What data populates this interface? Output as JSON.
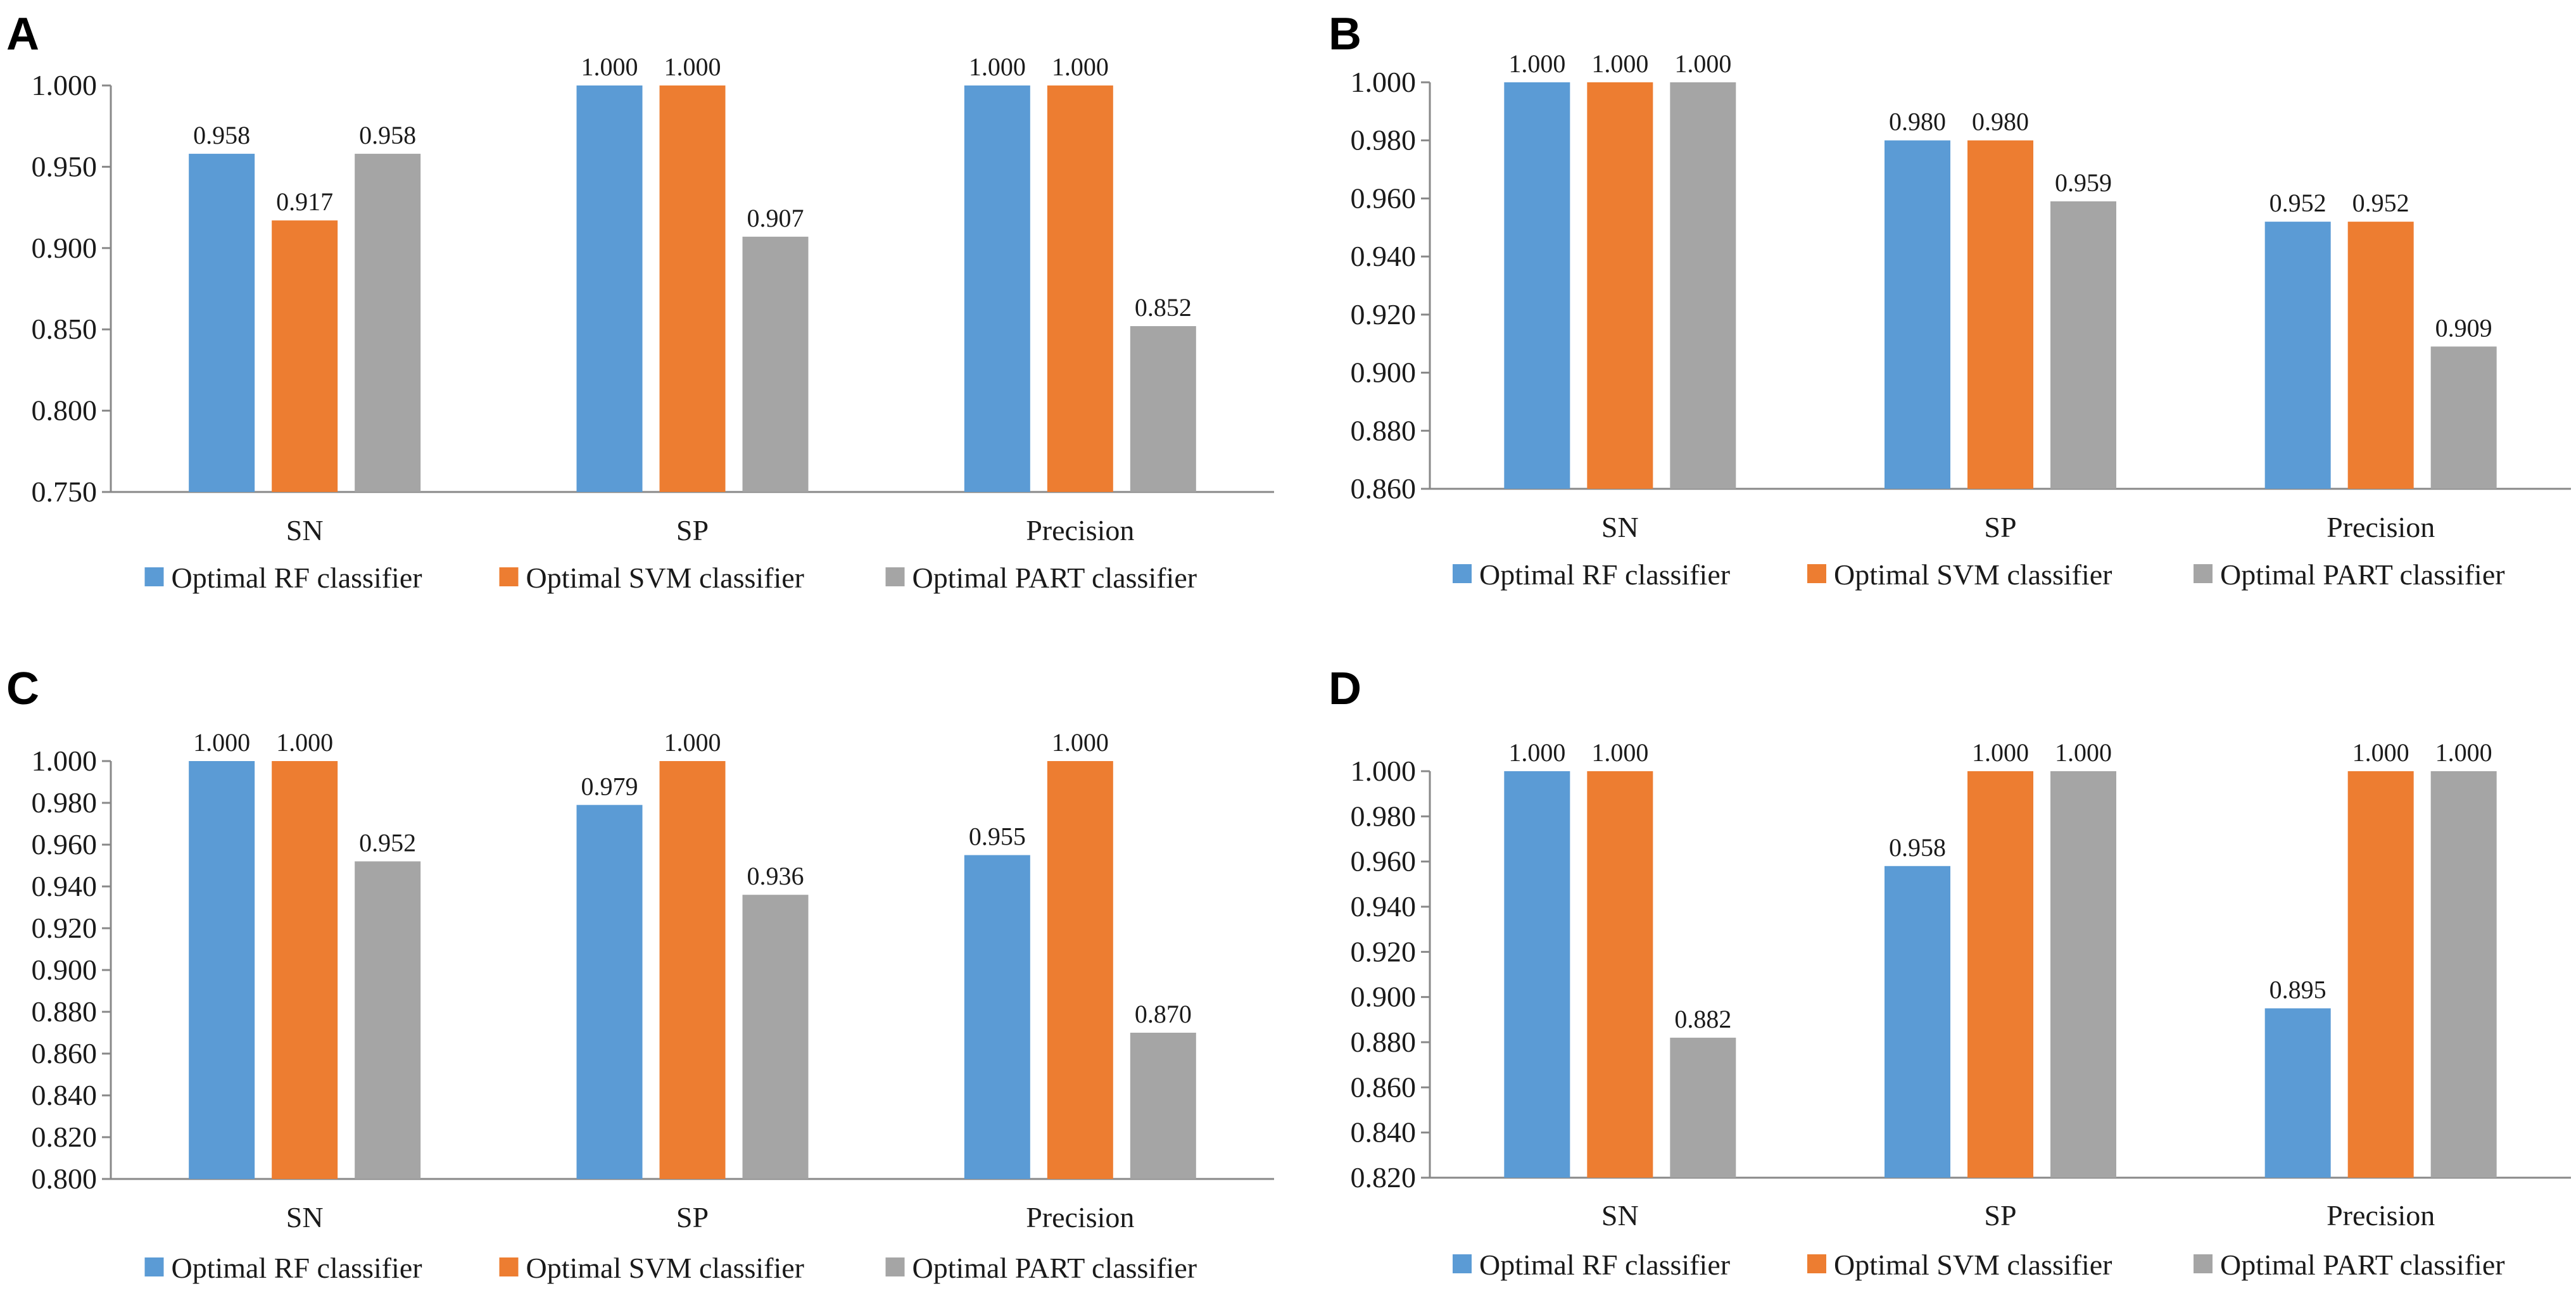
{
  "chart_data": [
    {
      "type": "bar",
      "panel": "A",
      "categories": [
        "SN",
        "SP",
        "Precision"
      ],
      "series": [
        {
          "name": "Optimal RF classifier",
          "color": "#5B9BD5",
          "values": [
            0.958,
            1.0,
            1.0
          ]
        },
        {
          "name": "Optimal SVM classifier",
          "color": "#ED7D31",
          "values": [
            0.917,
            1.0,
            1.0
          ]
        },
        {
          "name": "Optimal PART classifier",
          "color": "#A5A5A5",
          "values": [
            0.958,
            0.907,
            0.852
          ]
        }
      ],
      "ylim": [
        0.75,
        1.0
      ],
      "yticks": [
        "0.750",
        "0.800",
        "0.850",
        "0.900",
        "0.950",
        "1.000"
      ],
      "data_labels": [
        [
          "0.958",
          "1.000",
          "1.000"
        ],
        [
          "0.917",
          "1.000",
          "1.000"
        ],
        [
          "0.958",
          "0.907",
          "0.852"
        ]
      ],
      "legend": "bottom"
    },
    {
      "type": "bar",
      "panel": "B",
      "categories": [
        "SN",
        "SP",
        "Precision"
      ],
      "series": [
        {
          "name": "Optimal RF classifier",
          "color": "#5B9BD5",
          "values": [
            1.0,
            0.98,
            0.952
          ]
        },
        {
          "name": "Optimal SVM classifier",
          "color": "#ED7D31",
          "values": [
            1.0,
            0.98,
            0.952
          ]
        },
        {
          "name": "Optimal PART classifier",
          "color": "#A5A5A5",
          "values": [
            1.0,
            0.959,
            0.909
          ]
        }
      ],
      "ylim": [
        0.86,
        1.0
      ],
      "yticks": [
        "0.860",
        "0.880",
        "0.900",
        "0.920",
        "0.940",
        "0.960",
        "0.980",
        "1.000"
      ],
      "data_labels": [
        [
          "1.000",
          "0.980",
          "0.952"
        ],
        [
          "1.000",
          "0.980",
          "0.952"
        ],
        [
          "1.000",
          "0.959",
          "0.909"
        ]
      ],
      "legend": "bottom"
    },
    {
      "type": "bar",
      "panel": "C",
      "categories": [
        "SN",
        "SP",
        "Precision"
      ],
      "series": [
        {
          "name": "Optimal RF classifier",
          "color": "#5B9BD5",
          "values": [
            1.0,
            0.979,
            0.955
          ]
        },
        {
          "name": "Optimal SVM classifier",
          "color": "#ED7D31",
          "values": [
            1.0,
            1.0,
            1.0
          ]
        },
        {
          "name": "Optimal PART classifier",
          "color": "#A5A5A5",
          "values": [
            0.952,
            0.936,
            0.87
          ]
        }
      ],
      "ylim": [
        0.8,
        1.0
      ],
      "yticks": [
        "0.800",
        "0.820",
        "0.840",
        "0.860",
        "0.880",
        "0.900",
        "0.920",
        "0.940",
        "0.960",
        "0.980",
        "1.000"
      ],
      "data_labels": [
        [
          "1.000",
          "0.979",
          "0.955"
        ],
        [
          "1.000",
          "1.000",
          "1.000"
        ],
        [
          "0.952",
          "0.936",
          "0.870"
        ]
      ],
      "legend": "bottom"
    },
    {
      "type": "bar",
      "panel": "D",
      "categories": [
        "SN",
        "SP",
        "Precision"
      ],
      "series": [
        {
          "name": "Optimal RF classifier",
          "color": "#5B9BD5",
          "values": [
            1.0,
            0.958,
            0.895
          ]
        },
        {
          "name": "Optimal SVM classifier",
          "color": "#ED7D31",
          "values": [
            1.0,
            1.0,
            1.0
          ]
        },
        {
          "name": "Optimal PART classifier",
          "color": "#A5A5A5",
          "values": [
            0.882,
            1.0,
            1.0
          ]
        }
      ],
      "ylim": [
        0.82,
        1.0
      ],
      "yticks": [
        "0.820",
        "0.840",
        "0.860",
        "0.880",
        "0.900",
        "0.920",
        "0.940",
        "0.960",
        "0.980",
        "1.000"
      ],
      "data_labels": [
        [
          "1.000",
          "0.958",
          "0.895"
        ],
        [
          "1.000",
          "1.000",
          "1.000"
        ],
        [
          "0.882",
          "1.000",
          "1.000"
        ]
      ],
      "legend": "bottom"
    }
  ]
}
